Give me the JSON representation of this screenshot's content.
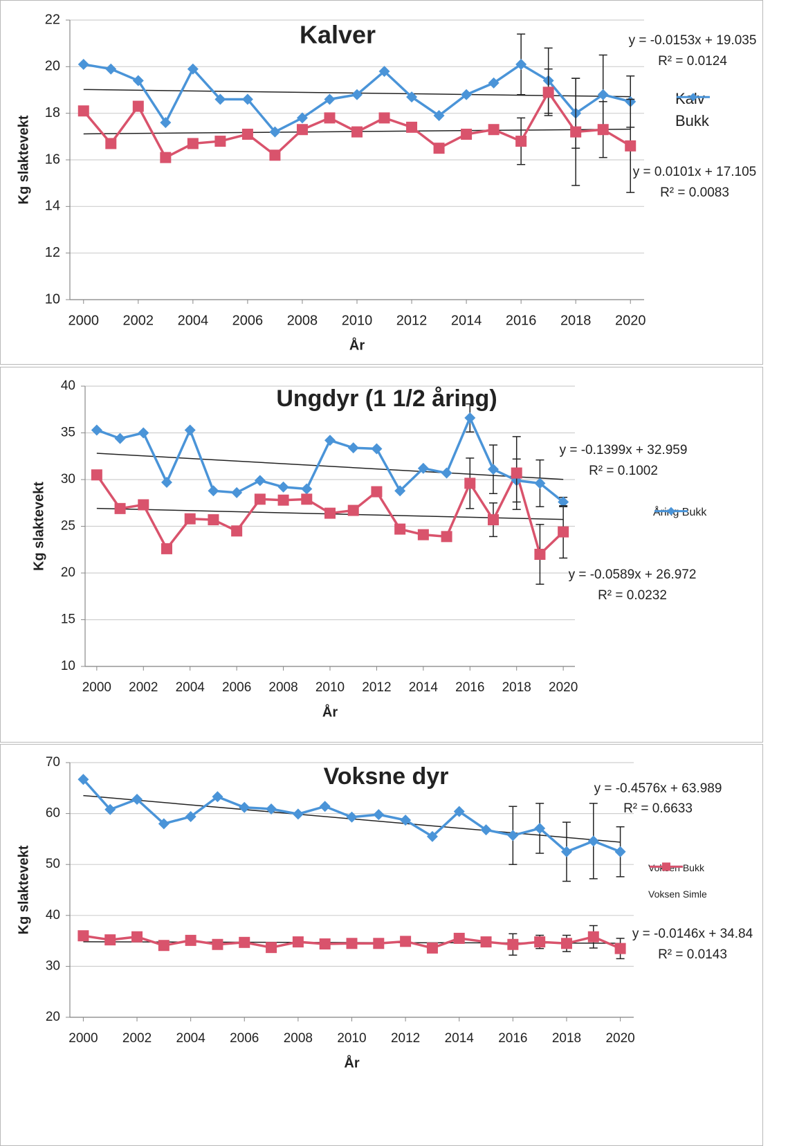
{
  "chart_data": [
    {
      "type": "line",
      "title": "Kalver",
      "xlabel": "År",
      "ylabel": "Kg slaktevekt",
      "x": [
        2000,
        2001,
        2002,
        2003,
        2004,
        2005,
        2006,
        2007,
        2008,
        2009,
        2010,
        2011,
        2012,
        2013,
        2014,
        2015,
        2016,
        2017,
        2018,
        2019,
        2020
      ],
      "xlim": [
        1999.5,
        2020.5
      ],
      "xticks": [
        2000,
        2002,
        2004,
        2006,
        2008,
        2010,
        2012,
        2014,
        2016,
        2018,
        2020
      ],
      "ylim": [
        10,
        22
      ],
      "yticks": [
        10,
        12,
        14,
        16,
        18,
        20,
        22
      ],
      "grid": true,
      "series": [
        {
          "name": "Kalv Bukk",
          "color": "#4a94d8",
          "marker": "diamond",
          "values": [
            20.1,
            19.9,
            19.4,
            17.6,
            19.9,
            18.6,
            18.6,
            17.2,
            17.8,
            18.6,
            18.8,
            19.8,
            18.7,
            17.9,
            18.8,
            19.3,
            20.1,
            19.4,
            18.0,
            18.8,
            18.5
          ],
          "errors": [
            null,
            null,
            null,
            null,
            null,
            null,
            null,
            null,
            null,
            null,
            null,
            null,
            null,
            null,
            null,
            null,
            1.3,
            1.4,
            1.5,
            1.7,
            1.1
          ],
          "trend": {
            "slope": -0.0153,
            "intercept": 19.035,
            "equation": "y = -0.0153x + 19.035",
            "r2": "R² = 0.0124"
          }
        },
        {
          "color": "#d9536c",
          "marker": "square",
          "values": [
            18.1,
            16.7,
            18.3,
            16.1,
            16.7,
            16.8,
            17.1,
            16.2,
            17.3,
            17.8,
            17.2,
            17.8,
            17.4,
            16.5,
            17.1,
            17.3,
            16.8,
            18.9,
            17.2,
            17.3,
            16.6
          ],
          "errors": [
            null,
            null,
            null,
            null,
            null,
            null,
            null,
            null,
            null,
            null,
            null,
            null,
            null,
            null,
            null,
            null,
            1.0,
            1.0,
            2.3,
            1.2,
            2.0
          ],
          "trend": {
            "slope": 0.0101,
            "intercept": 17.105,
            "equation": "y = 0.0101x + 17.105",
            "r2": "R² = 0.0083"
          }
        }
      ]
    },
    {
      "type": "line",
      "title": "Ungdyr (1 1/2 åring)",
      "xlabel": "År",
      "ylabel": "Kg slaktevekt",
      "x": [
        2000,
        2001,
        2002,
        2003,
        2004,
        2005,
        2006,
        2007,
        2008,
        2009,
        2010,
        2011,
        2012,
        2013,
        2014,
        2015,
        2016,
        2017,
        2018,
        2019,
        2020
      ],
      "xlim": [
        1999.5,
        2020.5
      ],
      "xticks": [
        2000,
        2002,
        2004,
        2006,
        2008,
        2010,
        2012,
        2014,
        2016,
        2018,
        2020
      ],
      "ylim": [
        10,
        40
      ],
      "yticks": [
        10,
        15,
        20,
        25,
        30,
        35,
        40
      ],
      "grid": true,
      "series": [
        {
          "name": "Åring Bukk",
          "color": "#4a94d8",
          "marker": "diamond",
          "values": [
            35.3,
            34.4,
            35.0,
            29.7,
            35.3,
            28.8,
            28.6,
            29.9,
            29.2,
            29.0,
            34.2,
            33.4,
            33.3,
            28.8,
            31.2,
            30.7,
            36.6,
            31.1,
            29.9,
            29.6,
            27.6
          ],
          "errors": [
            null,
            null,
            null,
            null,
            null,
            null,
            null,
            null,
            null,
            null,
            null,
            null,
            null,
            null,
            null,
            null,
            1.5,
            2.6,
            2.3,
            2.5,
            0.5
          ],
          "trend": {
            "slope": -0.1399,
            "intercept": 32.959,
            "equation": "y = -0.1399x + 32.959",
            "r2": "R² = 0.1002"
          }
        },
        {
          "color": "#d9536c",
          "marker": "square",
          "values": [
            30.5,
            26.9,
            27.3,
            22.6,
            25.8,
            25.7,
            24.5,
            27.9,
            27.8,
            27.9,
            26.4,
            26.7,
            28.7,
            24.7,
            24.1,
            23.9,
            29.6,
            25.7,
            30.7,
            22.0,
            24.4
          ],
          "errors": [
            null,
            null,
            null,
            null,
            null,
            null,
            null,
            null,
            null,
            null,
            null,
            null,
            null,
            null,
            null,
            null,
            2.7,
            1.8,
            3.9,
            3.2,
            2.8
          ],
          "trend": {
            "slope": -0.0589,
            "intercept": 26.972,
            "equation": "y = -0.0589x + 26.972",
            "r2": "R² = 0.0232"
          }
        }
      ]
    },
    {
      "type": "line",
      "title": "Voksne dyr",
      "xlabel": "År",
      "ylabel": "Kg slaktevekt",
      "x": [
        2000,
        2001,
        2002,
        2003,
        2004,
        2005,
        2006,
        2007,
        2008,
        2009,
        2010,
        2011,
        2012,
        2013,
        2014,
        2015,
        2016,
        2017,
        2018,
        2019,
        2020
      ],
      "xlim": [
        1999.5,
        2020.5
      ],
      "xticks": [
        2000,
        2002,
        2004,
        2006,
        2008,
        2010,
        2012,
        2014,
        2016,
        2018,
        2020
      ],
      "ylim": [
        20,
        70
      ],
      "yticks": [
        20,
        30,
        40,
        50,
        60,
        70
      ],
      "grid": true,
      "series": [
        {
          "name": "Voksen Bukk",
          "color": "#4a94d8",
          "marker": "diamond",
          "values": [
            66.7,
            60.8,
            62.8,
            58.0,
            59.4,
            63.3,
            61.2,
            60.9,
            59.9,
            61.4,
            59.3,
            59.8,
            58.7,
            55.5,
            60.4,
            56.8,
            55.7,
            57.1,
            52.5,
            54.6,
            52.5
          ],
          "errors": [
            null,
            null,
            null,
            null,
            null,
            null,
            null,
            null,
            null,
            null,
            null,
            null,
            null,
            null,
            null,
            null,
            5.7,
            4.9,
            5.8,
            7.4,
            4.9
          ],
          "trend": {
            "slope": -0.4576,
            "intercept": 63.989,
            "equation": "y = -0.4576x + 63.989",
            "r2": "R² = 0.6633"
          }
        },
        {
          "name": "Voksen Simle",
          "color": "#d9536c",
          "marker": "square",
          "values": [
            36.0,
            35.2,
            35.8,
            34.1,
            35.1,
            34.3,
            34.7,
            33.7,
            34.8,
            34.4,
            34.5,
            34.5,
            34.9,
            33.6,
            35.5,
            34.8,
            34.3,
            34.8,
            34.5,
            35.8,
            33.5
          ],
          "errors": [
            null,
            null,
            null,
            null,
            null,
            null,
            null,
            null,
            null,
            null,
            null,
            null,
            null,
            null,
            null,
            null,
            2.1,
            1.3,
            1.6,
            2.2,
            2.0
          ],
          "trend": {
            "slope": -0.0146,
            "intercept": 34.84,
            "equation": "y = -0.0146x + 34.84",
            "r2": "R² = 0.0143"
          }
        }
      ]
    }
  ]
}
